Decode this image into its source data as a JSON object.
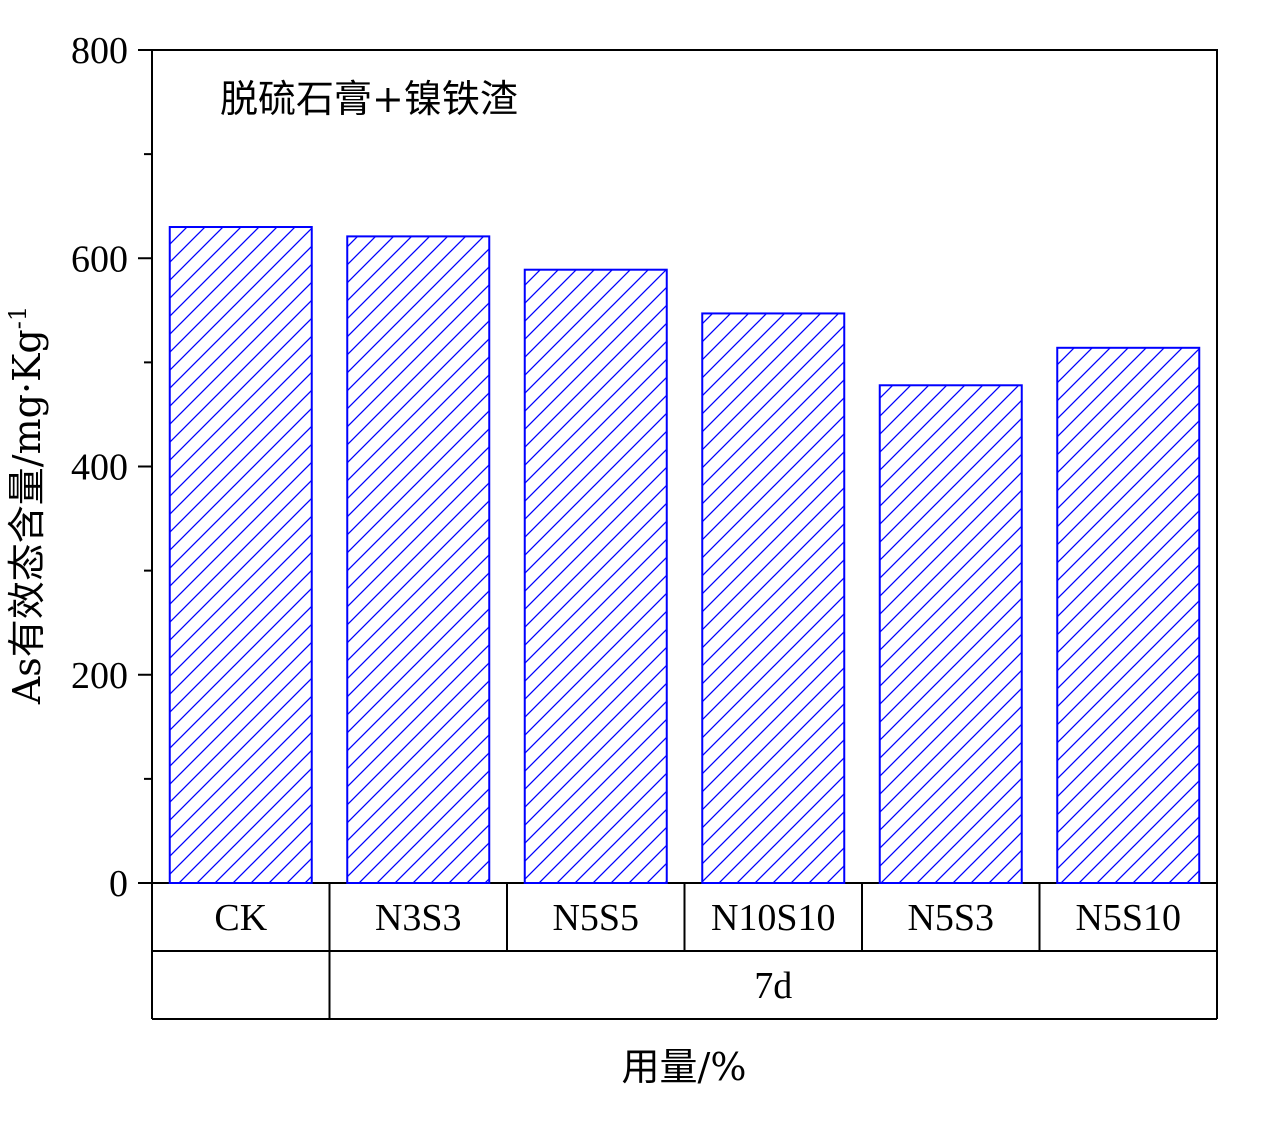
{
  "chart_data": {
    "type": "bar",
    "annotation": "脱硫石膏+镍铁渣",
    "ylabel": "As有效态含量/mg·Kg",
    "ylabel_superscript": "-1",
    "xlabel": "用量/%",
    "ylim": [
      0,
      800
    ],
    "yticks": [
      0,
      200,
      400,
      600,
      800
    ],
    "y_minor_step": 100,
    "categories": [
      "CK",
      "N3S3",
      "N5S5",
      "N10S10",
      "N5S3",
      "N5S10"
    ],
    "values": [
      630,
      621,
      589,
      547,
      478,
      514
    ],
    "group_labels": [
      {
        "label": "",
        "span": [
          0,
          0
        ]
      },
      {
        "label": "7d",
        "span": [
          1,
          5
        ]
      }
    ],
    "bar_color": "#0000ff",
    "fill_pattern": "diagonal-hatch",
    "grid": false
  }
}
